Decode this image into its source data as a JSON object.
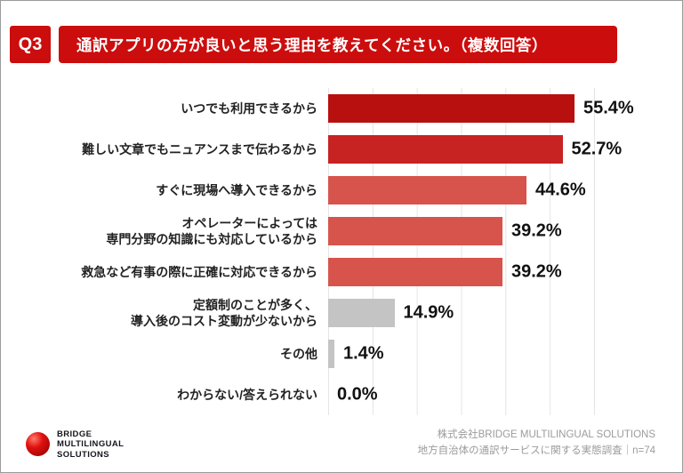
{
  "header": {
    "q_label": "Q3",
    "title": "通訳アプリの方が良いと思う理由を教えてください。（複数回答）",
    "accent_color": "#cc0d0d"
  },
  "chart_data": {
    "type": "bar",
    "orientation": "horizontal",
    "title": "通訳アプリの方が良いと思う理由を教えてください。（複数回答）",
    "categories": [
      "いつでも利用できるから",
      "難しい文章でもニュアンスまで伝わるから",
      "すぐに現場へ導入できるから",
      "オペレーターによっては\n専門分野の知識にも対応しているから",
      "救急など有事の際に正確に対応できるから",
      "定額制のことが多く、\n導入後のコスト変動が少ないから",
      "その他",
      "わからない/答えられない"
    ],
    "values": [
      55.4,
      52.7,
      44.6,
      39.2,
      39.2,
      14.9,
      1.4,
      0.0
    ],
    "value_labels": [
      "55.4%",
      "52.7%",
      "44.6%",
      "39.2%",
      "39.2%",
      "14.9%",
      "1.4%",
      "0.0%"
    ],
    "colors": [
      "#b8100f",
      "#c62322",
      "#d6544c",
      "#d6544c",
      "#d6544c",
      "#c4c4c4",
      "#c4c4c4",
      "#c4c4c4"
    ],
    "xlim": [
      0,
      60
    ],
    "grid": true,
    "legend": "none"
  },
  "footer": {
    "logo_lines": [
      "BRIDGE",
      "MULTILINGUAL",
      "SOLUTIONS"
    ],
    "source_line1": "株式会社BRIDGE MULTILINGUAL SOLUTIONS",
    "source_line2": "地方自治体の通訳サービスに関する実態調査｜n=74"
  }
}
